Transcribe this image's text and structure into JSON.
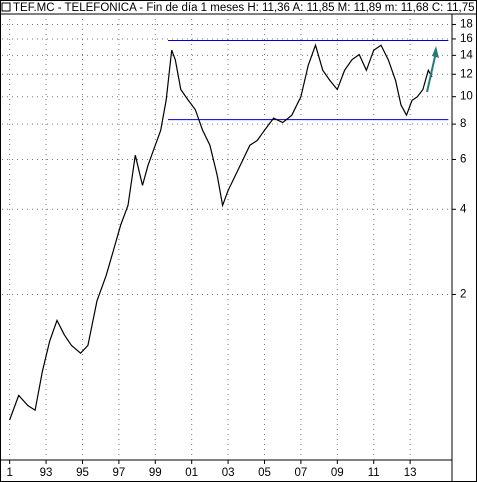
{
  "chart_data": {
    "type": "line",
    "title": "TEF.MC - TELEFONICA - Fin de día 1 meses  H: 11,36  A: 11,85  M: 11,89  m: 11,68  C: 11,75",
    "log_scale": true,
    "grid": true,
    "xlim": [
      1990.58,
      2015.3
    ],
    "ylim": [
      0.52,
      19.6
    ],
    "xticks": [
      {
        "value": 1991,
        "label": "1"
      },
      {
        "value": 1993,
        "label": "93"
      },
      {
        "value": 1995,
        "label": "95"
      },
      {
        "value": 1997,
        "label": "97"
      },
      {
        "value": 1999,
        "label": "99"
      },
      {
        "value": 2001,
        "label": "01"
      },
      {
        "value": 2003,
        "label": "03"
      },
      {
        "value": 2005,
        "label": "05"
      },
      {
        "value": 2007,
        "label": "07"
      },
      {
        "value": 2009,
        "label": "09"
      },
      {
        "value": 2011,
        "label": "11"
      },
      {
        "value": 2013,
        "label": "13"
      }
    ],
    "yticks": [
      2,
      4,
      6,
      8,
      10,
      12,
      14,
      16,
      18
    ],
    "series": [
      {
        "color": "#000000",
        "x": [
          1991.0,
          1991.5,
          1992.0,
          1992.4,
          1992.8,
          1993.2,
          1993.6,
          1994.0,
          1994.4,
          1994.9,
          1995.3,
          1995.8,
          1996.3,
          1996.7,
          1997.1,
          1997.5,
          1997.9,
          1998.3,
          1998.6,
          1999.0,
          1999.3,
          1999.6,
          1999.9,
          2000.1,
          2000.4,
          2000.8,
          2001.2,
          2001.6,
          2002.0,
          2002.4,
          2002.7,
          2003.0,
          2003.4,
          2003.8,
          2004.2,
          2004.6,
          2005.0,
          2005.5,
          2006.0,
          2006.5,
          2007.0,
          2007.4,
          2007.8,
          2008.2,
          2008.6,
          2009.0,
          2009.4,
          2009.8,
          2010.2,
          2010.6,
          2011.0,
          2011.4,
          2011.8,
          2012.2,
          2012.5,
          2012.8,
          2013.1,
          2013.4,
          2013.7,
          2014.0,
          2014.2
        ],
        "values": [
          0.72,
          0.88,
          0.81,
          0.78,
          1.07,
          1.37,
          1.62,
          1.44,
          1.32,
          1.24,
          1.32,
          1.9,
          2.33,
          2.86,
          3.52,
          4.13,
          6.21,
          4.86,
          5.72,
          6.74,
          7.61,
          9.74,
          14.6,
          13.5,
          10.6,
          9.74,
          9.0,
          7.61,
          6.74,
          5.27,
          4.13,
          4.66,
          5.27,
          5.96,
          6.74,
          7.0,
          7.61,
          8.4,
          8.1,
          8.6,
          10.0,
          12.9,
          15.2,
          12.4,
          11.4,
          10.6,
          12.4,
          13.5,
          14.1,
          12.4,
          14.6,
          15.2,
          13.5,
          11.4,
          9.35,
          8.6,
          9.7,
          10.0,
          10.6,
          12.4,
          11.75
        ]
      }
    ],
    "hlines": [
      {
        "value": 15.8,
        "x": [
          1999.7,
          2015.1
        ],
        "color": "#0000cc"
      },
      {
        "value": 8.3,
        "x": [
          1999.7,
          2015.1
        ],
        "color": "#0000cc"
      }
    ]
  }
}
